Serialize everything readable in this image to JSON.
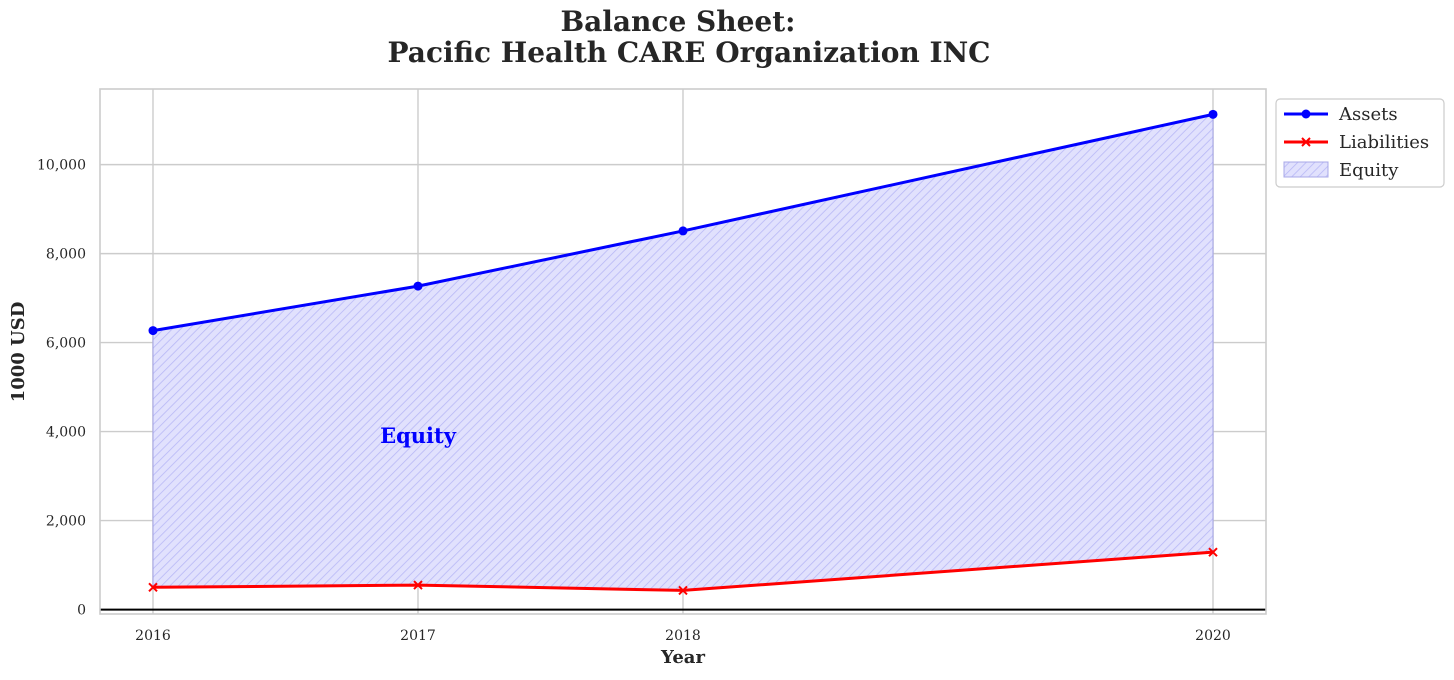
{
  "chart_data": {
    "type": "line",
    "title_line1": "Balance Sheet:",
    "title_line2": "Pacific Health CARE Organization INC",
    "xlabel": "Year",
    "ylabel": "1000 USD",
    "x": [
      2016,
      2017,
      2018,
      2020
    ],
    "x_tick_labels": [
      "2016",
      "2017",
      "2018",
      "2020"
    ],
    "xlim": [
      2015.8,
      2020.2
    ],
    "ylim": [
      -100,
      11700
    ],
    "y_ticks": [
      0,
      2000,
      4000,
      6000,
      8000,
      10000
    ],
    "y_tick_labels": [
      "0",
      "2,000",
      "4,000",
      "6,000",
      "8,000",
      "10,000"
    ],
    "series": [
      {
        "name": "Assets",
        "values": [
          6270,
          7270,
          8510,
          11130
        ],
        "color": "#0000ff",
        "marker": "circle"
      },
      {
        "name": "Liabilities",
        "values": [
          500,
          550,
          430,
          1290
        ],
        "color": "#ff0000",
        "marker": "x"
      }
    ],
    "fill": {
      "name": "Equity",
      "between": [
        "Liabilities",
        "Assets"
      ],
      "color": "#0000ff",
      "hatch": "diagonal"
    },
    "annotation": {
      "text": "Equity",
      "x": 2017,
      "y": 3900,
      "color": "#0000ff"
    },
    "grid": true,
    "legend_position": "outside-top-right"
  }
}
